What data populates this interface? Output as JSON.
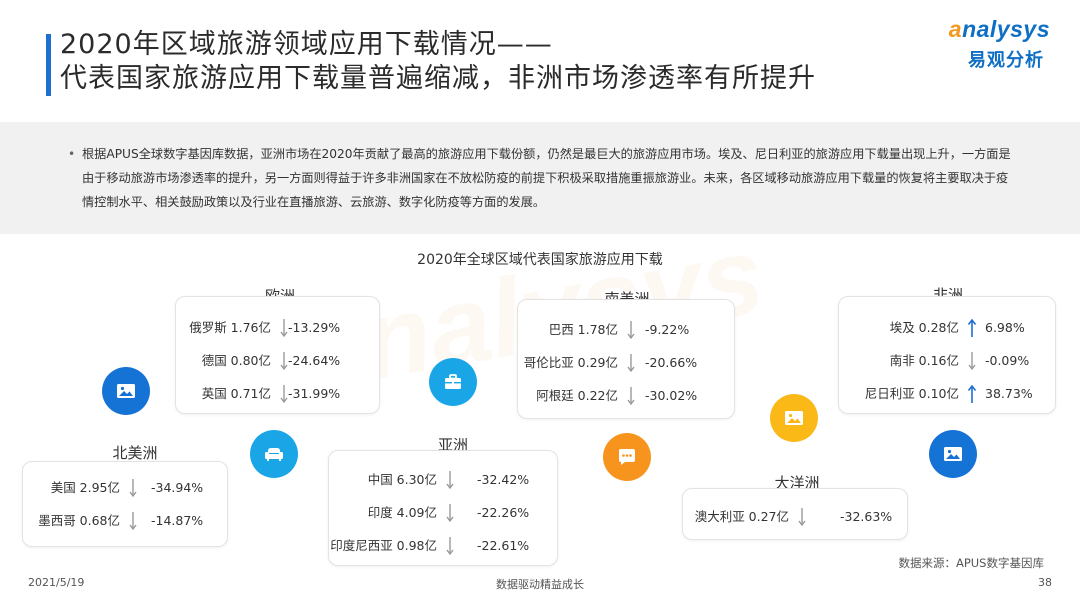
{
  "header": {
    "title_line1": "2020年区域旅游领域应用下载情况——",
    "title_line2": "代表国家旅游应用下载量普遍缩减，非洲市场渗透率有所提升"
  },
  "logo": {
    "word_a": "a",
    "word_rest": "nalysys",
    "cn": "易观分析"
  },
  "summary": "根据APUS全球数字基因库数据，亚洲市场在2020年贡献了最高的旅游应用下载份额，仍然是最巨大的旅游应用市场。埃及、尼日利亚的旅游应用下载量出现上升，一方面是由于移动旅游市场渗透率的提升，另一方面则得益于许多非洲国家在不放松防疫的前提下积极采取措施重振旅游业。未来，各区域移动旅游应用下载量的恢复将主要取决于疫情控制水平、相关鼓励政策以及行业在直播旅游、云旅游、数字化防疫等方面的发展。",
  "chart_title": "2020年全球区域代表国家旅游应用下载",
  "regions": {
    "europe": {
      "name": "欧洲",
      "rows": [
        {
          "label": "俄罗斯 1.76亿",
          "pct": "-13.29%",
          "dir": "down"
        },
        {
          "label": "德国 0.80亿",
          "pct": "-24.64%",
          "dir": "down"
        },
        {
          "label": "英国 0.71亿",
          "pct": "-31.99%",
          "dir": "down"
        }
      ]
    },
    "south_america": {
      "name": "南美洲",
      "rows": [
        {
          "label": "巴西 1.78亿",
          "pct": "-9.22%",
          "dir": "down"
        },
        {
          "label": "哥伦比亚 0.29亿",
          "pct": "-20.66%",
          "dir": "down"
        },
        {
          "label": "阿根廷 0.22亿",
          "pct": "-30.02%",
          "dir": "down"
        }
      ]
    },
    "africa": {
      "name": "非洲",
      "rows": [
        {
          "label": "埃及 0.28亿",
          "pct": "6.98%",
          "dir": "up"
        },
        {
          "label": "南非 0.16亿",
          "pct": "-0.09%",
          "dir": "down"
        },
        {
          "label": "尼日利亚 0.10亿",
          "pct": "38.73%",
          "dir": "up"
        }
      ]
    },
    "north_america": {
      "name": "北美洲",
      "rows": [
        {
          "label": "美国 2.95亿",
          "pct": "-34.94%",
          "dir": "down"
        },
        {
          "label": "墨西哥 0.68亿",
          "pct": "-14.87%",
          "dir": "down"
        }
      ]
    },
    "asia": {
      "name": "亚洲",
      "rows": [
        {
          "label": "中国 6.30亿",
          "pct": "-32.42%",
          "dir": "down"
        },
        {
          "label": "印度 4.09亿",
          "pct": "-22.26%",
          "dir": "down"
        },
        {
          "label": "印度尼西亚 0.98亿",
          "pct": "-22.61%",
          "dir": "down"
        }
      ]
    },
    "oceania": {
      "name": "大洋洲",
      "rows": [
        {
          "label": "澳大利亚 0.27亿",
          "pct": "-32.63%",
          "dir": "down"
        }
      ]
    }
  },
  "icons": {
    "north_america": "image-icon",
    "europe": "sofa-icon",
    "asia": "briefcase-icon",
    "south_america": "chat-icon",
    "oceania": "image-icon",
    "africa": "image-icon"
  },
  "colors": {
    "title_accent": "#1e6fd0",
    "down_arrow": "#999999",
    "up_arrow": "#1e6fd0",
    "icon_blue": "#1673d6",
    "icon_cyan": "#1aa6e6",
    "icon_orange": "#f7941d",
    "icon_yellow": "#fbb917"
  },
  "source": "数据来源：APUS数字基因库",
  "footer": {
    "date": "2021/5/19",
    "center": "数据驱动精益成长",
    "page": "38"
  }
}
